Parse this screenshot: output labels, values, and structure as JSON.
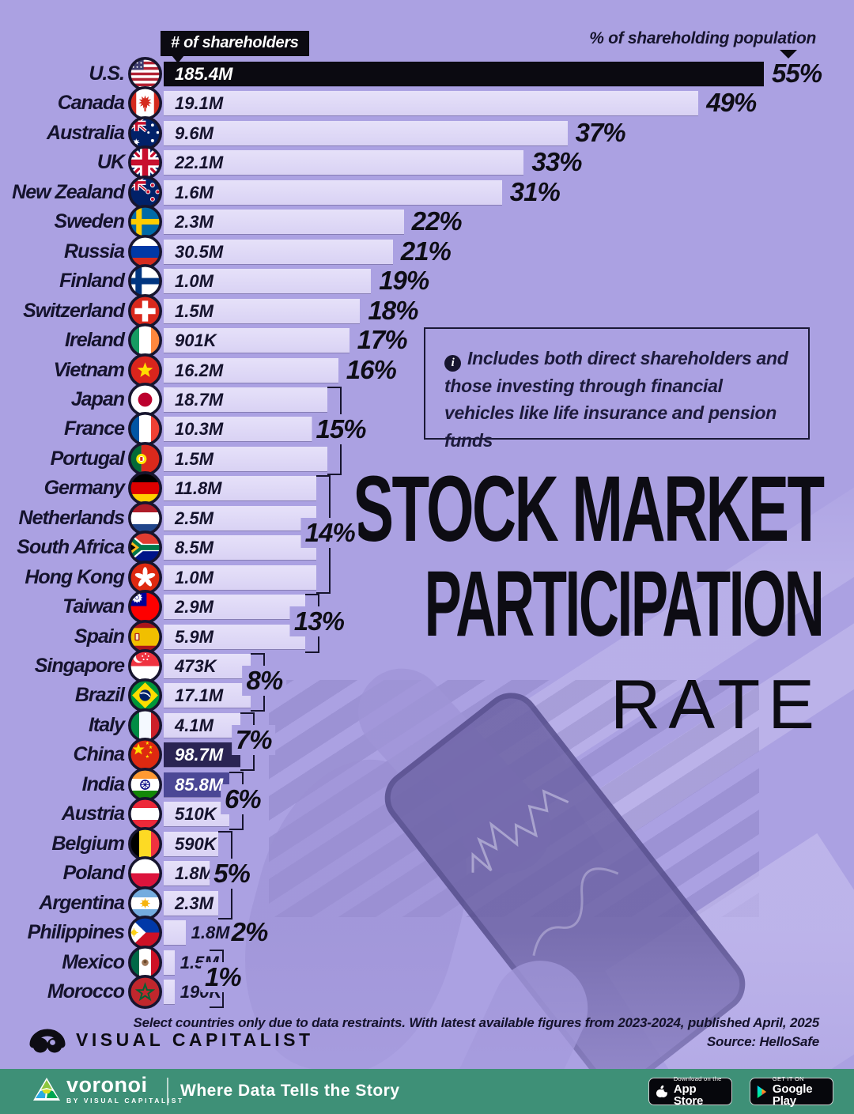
{
  "header": {
    "bar_label_badge": "# of shareholders",
    "pct_axis_label": "% of shareholding population"
  },
  "chart_data": {
    "type": "bar",
    "orientation": "horizontal",
    "title": "Stock Market Participation Rate",
    "value_unit": "% of shareholding population",
    "bar_label_unit": "# of shareholders",
    "xlim": [
      0,
      55
    ],
    "rows": [
      {
        "country": "U.S.",
        "flag": "us",
        "shareholders": "185.4M",
        "pct": 55,
        "pct_label": "55%",
        "highlight": "black"
      },
      {
        "country": "Canada",
        "flag": "ca",
        "shareholders": "19.1M",
        "pct": 49,
        "pct_label": "49%"
      },
      {
        "country": "Australia",
        "flag": "au",
        "shareholders": "9.6M",
        "pct": 37,
        "pct_label": "37%"
      },
      {
        "country": "UK",
        "flag": "uk",
        "shareholders": "22.1M",
        "pct": 33,
        "pct_label": "33%"
      },
      {
        "country": "New Zealand",
        "flag": "nz",
        "shareholders": "1.6M",
        "pct": 31,
        "pct_label": "31%"
      },
      {
        "country": "Sweden",
        "flag": "se",
        "shareholders": "2.3M",
        "pct": 22,
        "pct_label": "22%"
      },
      {
        "country": "Russia",
        "flag": "ru",
        "shareholders": "30.5M",
        "pct": 21,
        "pct_label": "21%"
      },
      {
        "country": "Finland",
        "flag": "fi",
        "shareholders": "1.0M",
        "pct": 19,
        "pct_label": "19%"
      },
      {
        "country": "Switzerland",
        "flag": "ch",
        "shareholders": "1.5M",
        "pct": 18,
        "pct_label": "18%"
      },
      {
        "country": "Ireland",
        "flag": "ie",
        "shareholders": "901K",
        "pct": 17,
        "pct_label": "17%"
      },
      {
        "country": "Vietnam",
        "flag": "vn",
        "shareholders": "16.2M",
        "pct": 16,
        "pct_label": "16%"
      },
      {
        "country": "Japan",
        "flag": "jp",
        "shareholders": "18.7M",
        "pct": 15
      },
      {
        "country": "France",
        "flag": "fr",
        "shareholders": "10.3M",
        "pct": 15
      },
      {
        "country": "Portugal",
        "flag": "pt",
        "shareholders": "1.5M",
        "pct": 15
      },
      {
        "country": "Germany",
        "flag": "de",
        "shareholders": "11.8M",
        "pct": 14
      },
      {
        "country": "Netherlands",
        "flag": "nl",
        "shareholders": "2.5M",
        "pct": 14
      },
      {
        "country": "South Africa",
        "flag": "za",
        "shareholders": "8.5M",
        "pct": 14
      },
      {
        "country": "Hong Kong",
        "flag": "hk",
        "shareholders": "1.0M",
        "pct": 14
      },
      {
        "country": "Taiwan",
        "flag": "tw",
        "shareholders": "2.9M",
        "pct": 13
      },
      {
        "country": "Spain",
        "flag": "es",
        "shareholders": "5.9M",
        "pct": 13
      },
      {
        "country": "Singapore",
        "flag": "sg",
        "shareholders": "473K",
        "pct": 8
      },
      {
        "country": "Brazil",
        "flag": "br",
        "shareholders": "17.1M",
        "pct": 8
      },
      {
        "country": "Italy",
        "flag": "it",
        "shareholders": "4.1M",
        "pct": 7
      },
      {
        "country": "China",
        "flag": "cn",
        "shareholders": "98.7M",
        "pct": 7,
        "highlight": "navy"
      },
      {
        "country": "India",
        "flag": "in",
        "shareholders": "85.8M",
        "pct": 6,
        "highlight": "indigo"
      },
      {
        "country": "Austria",
        "flag": "at",
        "shareholders": "510K",
        "pct": 6
      },
      {
        "country": "Belgium",
        "flag": "be",
        "shareholders": "590K",
        "pct": 5
      },
      {
        "country": "Poland",
        "flag": "pl",
        "shareholders": "1.8M",
        "pct": 5
      },
      {
        "country": "Argentina",
        "flag": "ar",
        "shareholders": "2.3M",
        "pct": 5
      },
      {
        "country": "Philippines",
        "flag": "ph",
        "shareholders": "1.8M",
        "pct": 2,
        "pct_label": "2%",
        "value_outside": true
      },
      {
        "country": "Mexico",
        "flag": "mx",
        "shareholders": "1.5M",
        "pct": 1,
        "value_outside": true
      },
      {
        "country": "Morocco",
        "flag": "ma",
        "shareholders": "190K",
        "pct": 1,
        "value_outside": true
      }
    ],
    "groups": [
      {
        "label": "15%",
        "pct": 15,
        "start": 11,
        "end": 13
      },
      {
        "label": "14%",
        "pct": 14,
        "start": 14,
        "end": 17
      },
      {
        "label": "13%",
        "pct": 13,
        "start": 18,
        "end": 19
      },
      {
        "label": "8%",
        "pct": 8,
        "start": 20,
        "end": 21
      },
      {
        "label": "7%",
        "pct": 7,
        "start": 22,
        "end": 23
      },
      {
        "label": "6%",
        "pct": 6,
        "start": 24,
        "end": 25
      },
      {
        "label": "5%",
        "pct": 5,
        "start": 26,
        "end": 28
      },
      {
        "label": "1%",
        "pct": 1,
        "start": 30,
        "end": 31
      }
    ]
  },
  "note_box": {
    "text": "Includes both direct shareholders and those investing through financial vehicles like life insurance and pension funds",
    "icon": "info-icon"
  },
  "title": {
    "line1": "STOCK MARKET",
    "line2": "PARTICIPATION",
    "line3": "RATE"
  },
  "footnote": {
    "line1": "Select countries only due to data restraints. With latest available figures from 2023-2024, published April, 2025",
    "line2": "Source: HelloSafe"
  },
  "branding": {
    "logo_text": "VISUAL CAPITALIST"
  },
  "footer_bar": {
    "voronoi": "voronoi",
    "voronoi_sub": "BY VISUAL CAPITALIST",
    "tagline": "Where Data Tells the Story",
    "appstore_small": "Download on the",
    "appstore_big": "App Store",
    "gplay_small": "GET IT ON",
    "gplay_big": "Google Play"
  },
  "colors": {
    "background": "#aba1e2",
    "bar_light": "#ded8f6",
    "bar_us": "#0b0a11",
    "bar_china": "#2a2453",
    "bar_india": "#4b4795",
    "text_dark": "#15132d",
    "footer_green": "#3e9077"
  }
}
